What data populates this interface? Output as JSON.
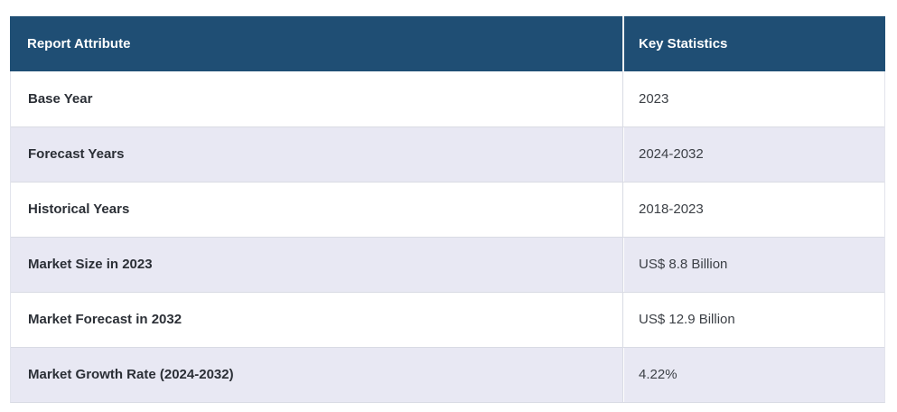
{
  "table": {
    "columns": [
      {
        "label": "Report Attribute"
      },
      {
        "label": "Key Statistics"
      }
    ],
    "rows": [
      {
        "attribute": "Base Year",
        "value": "2023"
      },
      {
        "attribute": "Forecast Years",
        "value": "2024-2032"
      },
      {
        "attribute": "Historical Years",
        "value": "2018-2023"
      },
      {
        "attribute": "Market Size in 2023",
        "value": "US$ 8.8 Billion"
      },
      {
        "attribute": "Market Forecast in 2032",
        "value": "US$ 12.9 Billion"
      },
      {
        "attribute": "Market Growth Rate (2024-2032)",
        "value": "4.22%"
      }
    ]
  },
  "colors": {
    "header_bg": "#1f4e74",
    "header_text": "#ffffff",
    "row_bg": "#ffffff",
    "row_alt_bg": "#e8e8f3",
    "attribute_text": "#2b2f36",
    "value_text": "#3c4046",
    "border": "#d9dbe4"
  }
}
